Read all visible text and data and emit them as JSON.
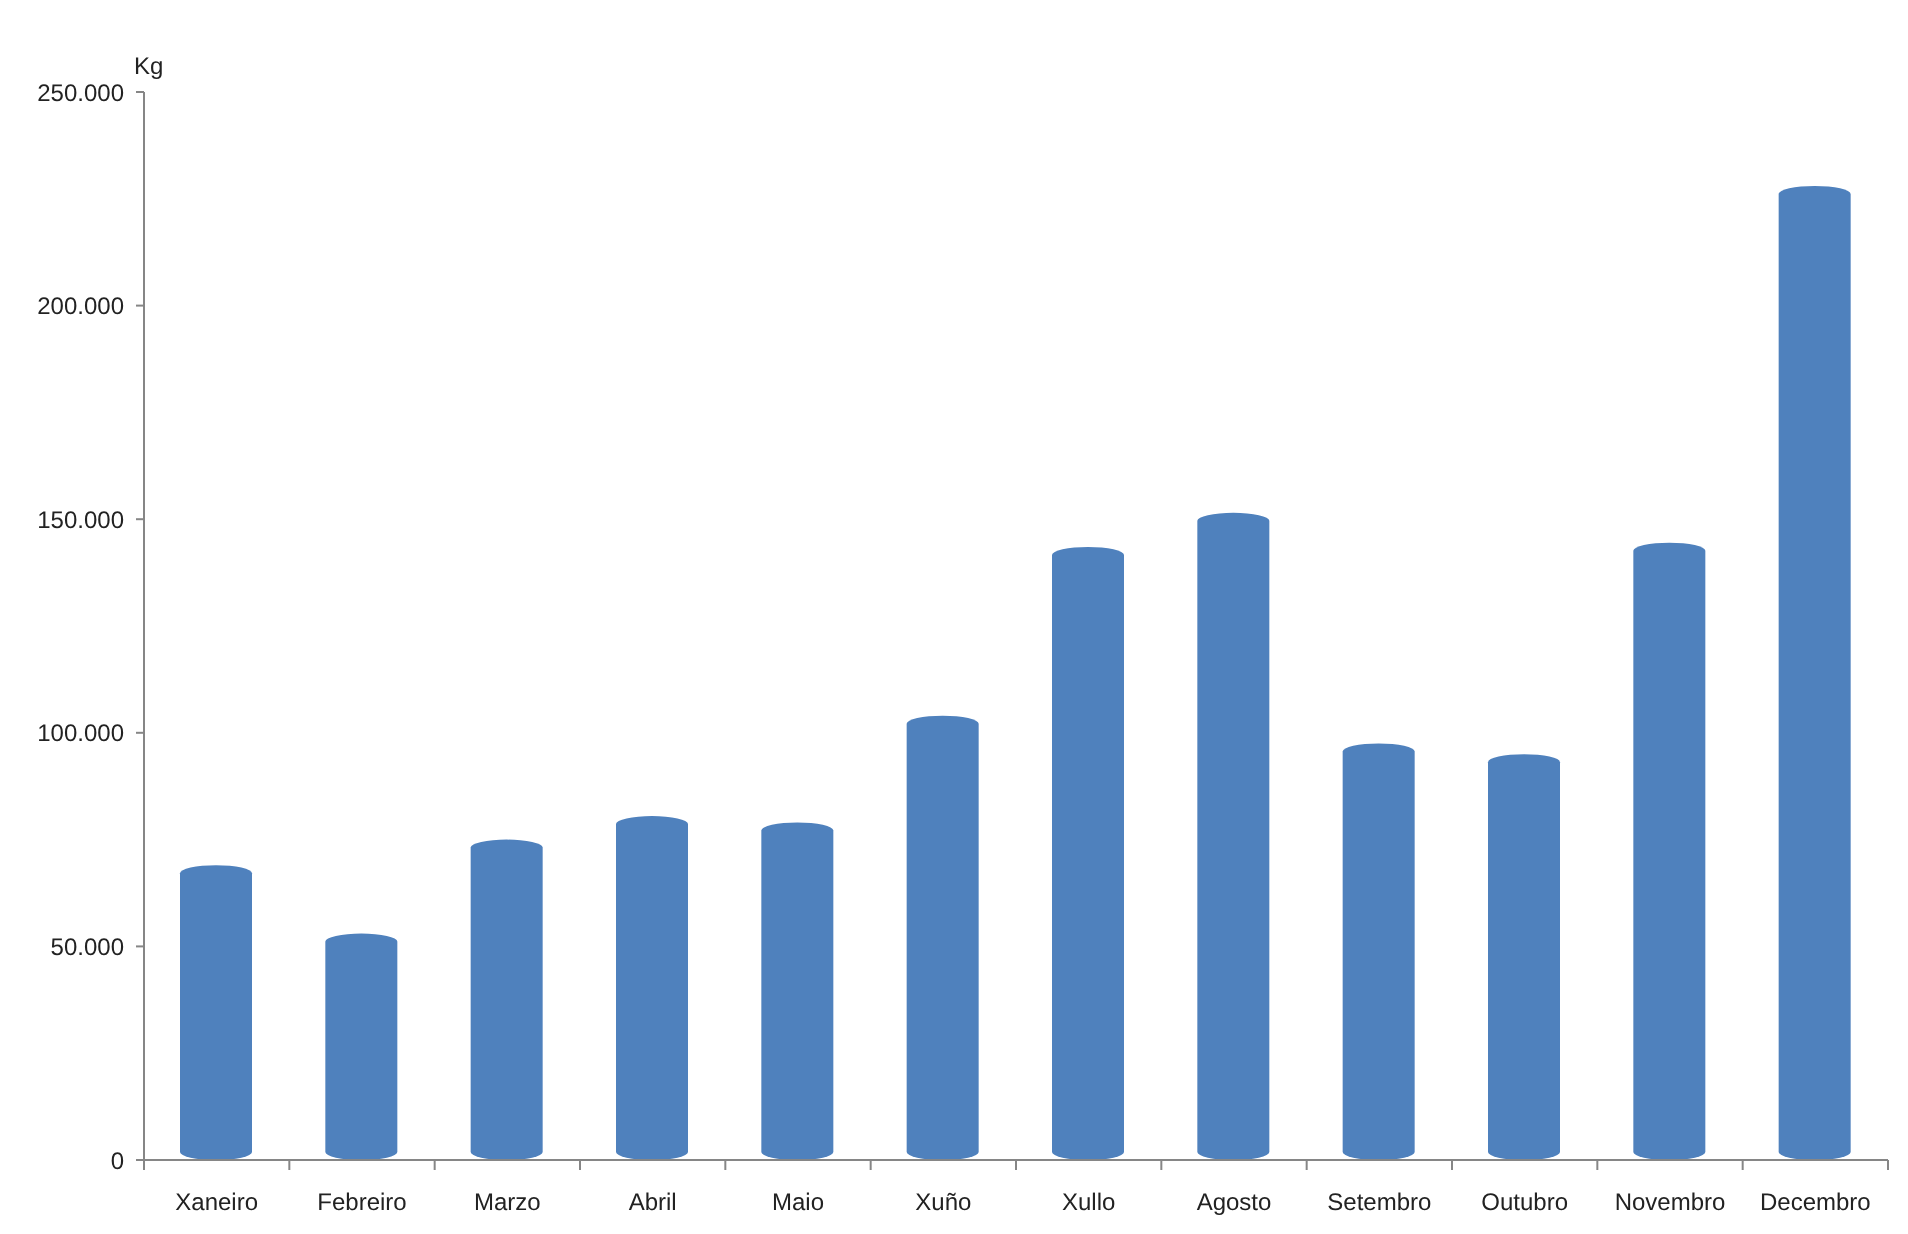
{
  "chart_data": {
    "type": "bar",
    "ylabel": "Kg",
    "categories": [
      "Xaneiro",
      "Febreiro",
      "Marzo",
      "Abril",
      "Maio",
      "Xuño",
      "Xullo",
      "Agosto",
      "Setembro",
      "Outubro",
      "Novembro",
      "Decembro"
    ],
    "values": [
      69000,
      53000,
      75000,
      80500,
      79000,
      104000,
      143500,
      151500,
      97500,
      95000,
      144500,
      228000
    ],
    "color": "#4f81bd",
    "ylim": [
      0,
      250000
    ],
    "yticks": [
      0,
      {
        "value": 50000,
        "label": "50.000"
      },
      {
        "value": 100000,
        "label": "100.000"
      },
      {
        "value": 150000,
        "label": "150.000"
      },
      {
        "value": 200000,
        "label": "200.000"
      },
      {
        "value": 250000,
        "label": "250.000"
      }
    ]
  }
}
